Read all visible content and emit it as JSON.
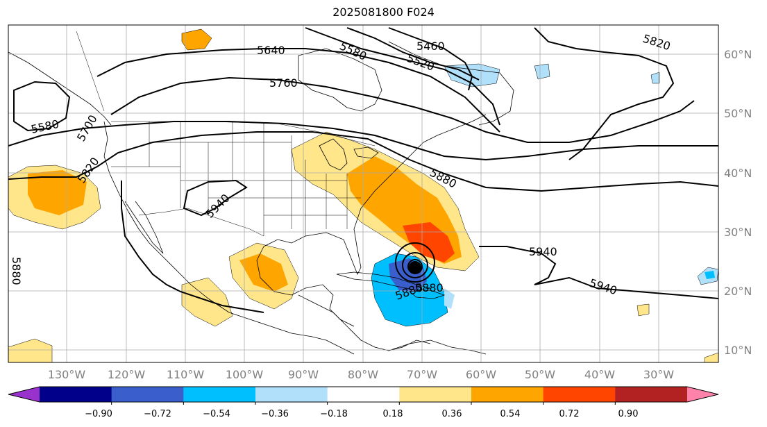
{
  "title": "2025081800 F024",
  "map": {
    "lon_labels": [
      "130°W",
      "120°W",
      "110°W",
      "100°W",
      "90°W",
      "80°W",
      "70°W",
      "60°W",
      "50°W",
      "40°W",
      "30°W"
    ],
    "lat_labels": [
      "60°N",
      "50°N",
      "40°N",
      "30°N",
      "20°N",
      "10°N"
    ],
    "contour_labels": [
      "5640",
      "5580",
      "5460",
      "5520",
      "5760",
      "5820",
      "5580",
      "5700",
      "5820",
      "5880",
      "5940",
      "5940",
      "5940",
      "5880",
      "5880",
      "5880"
    ]
  },
  "colorbar": {
    "tick_labels": [
      "−0.90",
      "−0.72",
      "−0.54",
      "−0.36",
      "−0.18",
      "0.18",
      "0.36",
      "0.54",
      "0.72",
      "0.90"
    ],
    "colors": [
      "#9932cc",
      "#00008b",
      "#3a5fcd",
      "#00bfff",
      "#b0e0fa",
      "#ffffff",
      "#ffe68a",
      "#ffa500",
      "#ff4500",
      "#b22222",
      "#ff82ab"
    ]
  }
}
